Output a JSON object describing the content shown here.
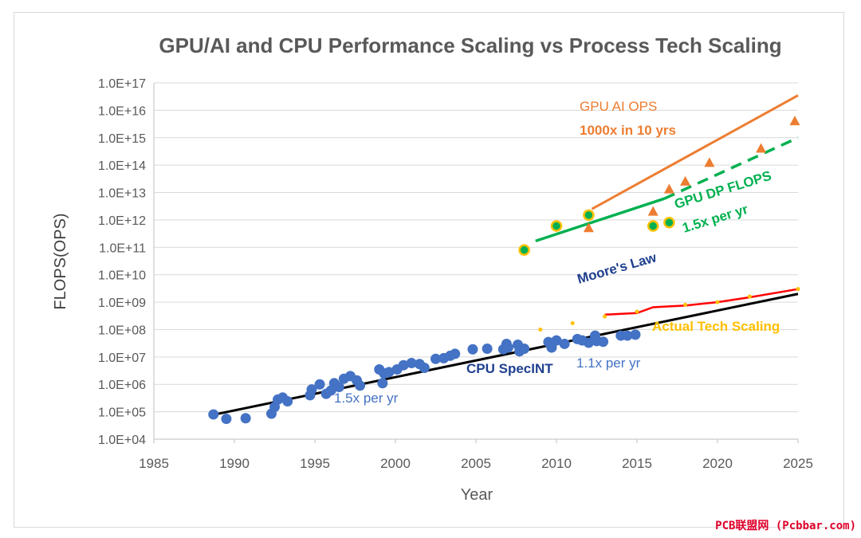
{
  "chart_data": {
    "type": "scatter",
    "title": "GPU/AI and CPU Performance Scaling vs Process Tech Scaling",
    "xlabel": "Year",
    "ylabel": "FLOPS(OPS)",
    "xlim": [
      1985,
      2025
    ],
    "ylim_log10": [
      4,
      17
    ],
    "x_ticks": [
      "1985",
      "1990",
      "1995",
      "2000",
      "2005",
      "2010",
      "2015",
      "2020",
      "2025"
    ],
    "y_ticks": [
      "1.0E+04",
      "1.0E+05",
      "1.0E+06",
      "1.0E+07",
      "1.0E+08",
      "1.0E+09",
      "1.0E+10",
      "1.0E+11",
      "1.0E+12",
      "1.0E+13",
      "1.0E+14",
      "1.0E+15",
      "1.0E+16",
      "1.0E+17"
    ],
    "grid": "horizontal",
    "colors": {
      "cpu": "#4472c4",
      "gpu_ai": "#ed7d31",
      "gpu_dp": "#00b050",
      "gpu_dp_edge": "#ffc000",
      "moore": "#000000",
      "actual": "#ff0000",
      "actual_dots": "#ffc000",
      "label_blue": "#1f3f8f"
    },
    "series": [
      {
        "name": "CPU SpecINT",
        "kind": "scatter",
        "points": [
          [
            1988.7,
            80000
          ],
          [
            1989.5,
            55000
          ],
          [
            1990.7,
            58000
          ],
          [
            1992.3,
            85000
          ],
          [
            1992.5,
            150000
          ],
          [
            1992.7,
            280000
          ],
          [
            1993.0,
            330000
          ],
          [
            1993.3,
            240000
          ],
          [
            1994.7,
            400000
          ],
          [
            1994.8,
            650000
          ],
          [
            1995.3,
            1000000
          ],
          [
            1995.7,
            450000
          ],
          [
            1996.0,
            600000
          ],
          [
            1996.2,
            1100000
          ],
          [
            1996.5,
            800000
          ],
          [
            1996.8,
            1600000
          ],
          [
            1997.2,
            2000000
          ],
          [
            1997.6,
            1400000
          ],
          [
            1997.8,
            900000
          ],
          [
            1999.0,
            3500000
          ],
          [
            1999.3,
            2500000
          ],
          [
            1999.2,
            1100000
          ],
          [
            1999.6,
            2800000
          ],
          [
            2000.1,
            3500000
          ],
          [
            2000.5,
            5000000
          ],
          [
            2001.0,
            6000000
          ],
          [
            2001.5,
            5500000
          ],
          [
            2001.8,
            4000000
          ],
          [
            2002.5,
            8500000
          ],
          [
            2003.0,
            9000000
          ],
          [
            2003.4,
            11000000
          ],
          [
            2003.7,
            13000000
          ],
          [
            2004.8,
            19000000
          ],
          [
            2005.7,
            20000000
          ],
          [
            2006.7,
            19000000
          ],
          [
            2006.9,
            30000000
          ],
          [
            2007.0,
            22000000
          ],
          [
            2007.6,
            28000000
          ],
          [
            2007.7,
            16000000
          ],
          [
            2008.0,
            20000000
          ],
          [
            2009.5,
            35000000
          ],
          [
            2009.7,
            22000000
          ],
          [
            2010.0,
            40000000
          ],
          [
            2010.5,
            30000000
          ],
          [
            2011.3,
            45000000
          ],
          [
            2011.6,
            40000000
          ],
          [
            2012.0,
            33000000
          ],
          [
            2012.4,
            60000000
          ],
          [
            2012.5,
            38000000
          ],
          [
            2012.9,
            36000000
          ],
          [
            2014.0,
            60000000
          ],
          [
            2014.4,
            60000000
          ],
          [
            2014.9,
            65000000
          ]
        ]
      },
      {
        "name": "GPU AI OPS",
        "kind": "triangle",
        "points": [
          [
            2012,
            500000000000
          ],
          [
            2016,
            2000000000000
          ],
          [
            2017,
            13000000000000
          ],
          [
            2018,
            25000000000000
          ],
          [
            2019.5,
            120000000000000
          ],
          [
            2022.7,
            400000000000000
          ],
          [
            2024.8,
            4000000000000000
          ]
        ],
        "trend": [
          [
            2012.2,
            2500000000000
          ],
          [
            2025,
            35000000000000000
          ]
        ]
      },
      {
        "name": "GPU DP FLOPS",
        "kind": "circle",
        "points": [
          [
            2008,
            80000000000
          ],
          [
            2010,
            600000000000
          ],
          [
            2012,
            1500000000000
          ],
          [
            2016,
            600000000000
          ],
          [
            2017,
            800000000000
          ]
        ],
        "trend_solid": [
          [
            2008.7,
            170000000000
          ],
          [
            2016.7,
            6000000000000
          ]
        ],
        "trend_dashed": [
          [
            2016.7,
            6000000000000
          ],
          [
            2025,
            1000000000000000
          ]
        ]
      },
      {
        "name": "Moore's Law",
        "kind": "line",
        "points": [
          [
            1988.8,
            80000
          ],
          [
            2025,
            2000000000
          ]
        ]
      },
      {
        "name": "Actual Tech  Scaling",
        "kind": "line",
        "points": [
          [
            2013,
            350000000
          ],
          [
            2015,
            400000000
          ],
          [
            2016,
            650000000
          ],
          [
            2017,
            700000000
          ],
          [
            2018,
            750000000
          ],
          [
            2020,
            1000000000
          ],
          [
            2022,
            1500000000
          ],
          [
            2025,
            3000000000
          ]
        ],
        "dots": [
          [
            2009,
            100000000
          ],
          [
            2011,
            170000000
          ],
          [
            2013,
            300000000
          ],
          [
            2015,
            450000000
          ],
          [
            2018,
            800000000
          ],
          [
            2020,
            1000000000
          ],
          [
            2022,
            1600000000
          ],
          [
            2025,
            3000000000
          ]
        ]
      }
    ],
    "annotations": [
      {
        "id": "gpu-ai-label",
        "text": "GPU AI OPS"
      },
      {
        "id": "gpu-ai-rate",
        "text": "1000x in 10 yrs"
      },
      {
        "id": "gpu-dp-label",
        "text": "GPU DP FLOPS"
      },
      {
        "id": "gpu-dp-rate",
        "text": "1.5x  per  yr"
      },
      {
        "id": "moore-label",
        "text": "Moore's Law"
      },
      {
        "id": "actual-label",
        "text": "Actual Tech  Scaling"
      },
      {
        "id": "cpu-label",
        "text": "CPU SpecINT"
      },
      {
        "id": "cpu-rate-late",
        "text": "1.1x per yr"
      },
      {
        "id": "cpu-rate-early",
        "text": "1.5x per yr"
      }
    ]
  },
  "watermark": "PCB联盟网 (Pcbbar.com)"
}
